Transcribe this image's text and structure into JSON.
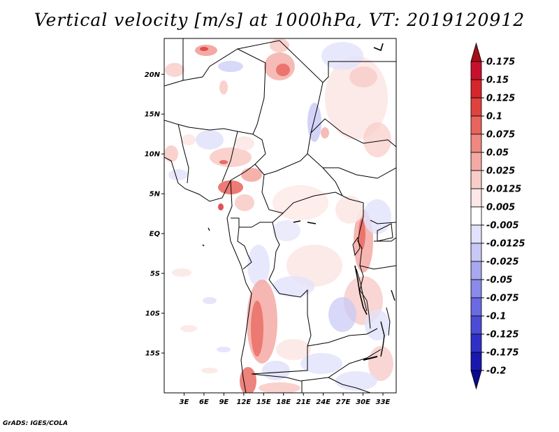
{
  "title": "Vertical velocity [m/s] at 1000hPa, VT: 2019120912",
  "credit": "GrADS: IGES/COLA",
  "map": {
    "lat_labels": [
      "20N",
      "15N",
      "10N",
      "5N",
      "EQ",
      "5S",
      "10S",
      "15S"
    ],
    "lon_labels": [
      "3E",
      "6E",
      "9E",
      "12E",
      "15E",
      "18E",
      "21E",
      "24E",
      "27E",
      "30E",
      "33E"
    ],
    "lat_values": [
      20,
      15,
      10,
      5,
      0,
      -5,
      -10,
      -15
    ],
    "lon_values": [
      3,
      6,
      9,
      12,
      15,
      18,
      21,
      24,
      27,
      30,
      33
    ],
    "lon_range": [
      0,
      35
    ],
    "lat_range": [
      -20,
      24.5
    ]
  },
  "colorbar": {
    "labels": [
      "0.175",
      "0.15",
      "0.125",
      "0.1",
      "0.075",
      "0.05",
      "0.025",
      "0.0125",
      "0.005",
      "-0.005",
      "-0.0125",
      "-0.025",
      "-0.05",
      "-0.075",
      "-0.1",
      "-0.125",
      "-0.175",
      "-0.2"
    ],
    "colors": [
      "#a50f15",
      "#c8102e",
      "#d7262a",
      "#e0423d",
      "#e8645c",
      "#ef8880",
      "#f4aaa4",
      "#f8ccc8",
      "#fce8e6",
      "#ffffff",
      "#e2e2fb",
      "#c8c8f6",
      "#a8a8f0",
      "#8a8aea",
      "#6a6ae2",
      "#4c4cd6",
      "#3030c8",
      "#1818b0",
      "#0a0a90"
    ]
  }
}
